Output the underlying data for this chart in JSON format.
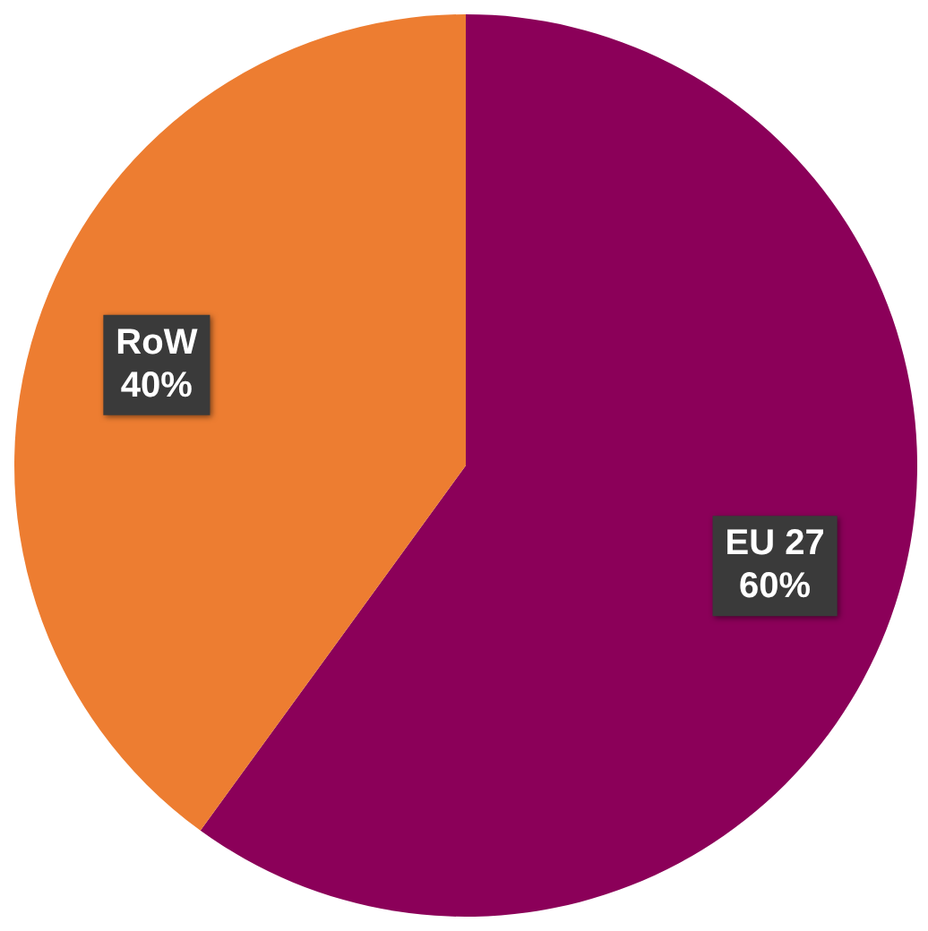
{
  "chart_data": {
    "type": "pie",
    "categories": [
      "EU 27",
      "RoW"
    ],
    "values": [
      60,
      40
    ],
    "colors": [
      "#8b0059",
      "#ed7d31"
    ],
    "value_labels": [
      "60%",
      "40%"
    ],
    "legend": false
  }
}
